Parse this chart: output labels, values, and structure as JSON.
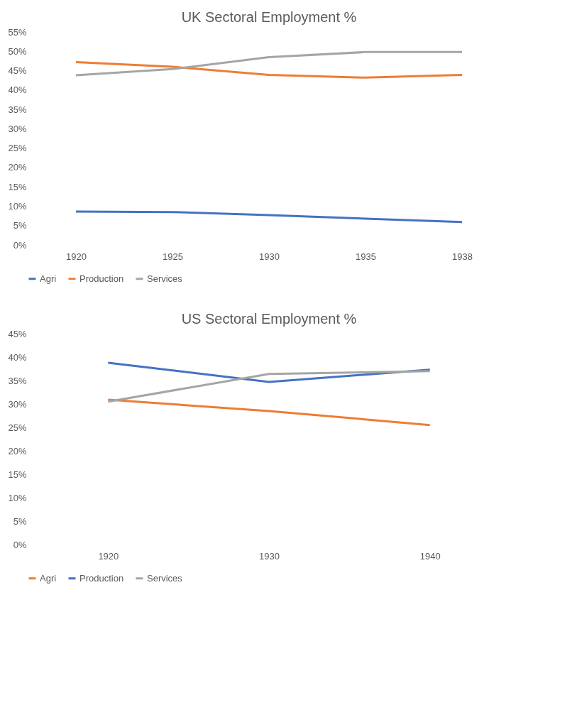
{
  "chart_data": [
    {
      "type": "line",
      "title": "UK  Sectoral Employment %",
      "categories": [
        "1920",
        "1925",
        "1930",
        "1935",
        "1938"
      ],
      "series": [
        {
          "name": "Agri",
          "color": "#4472c4",
          "values": [
            8.6,
            8.5,
            7.7,
            6.8,
            5.9
          ]
        },
        {
          "name": "Production",
          "color": "#ed7d31",
          "values": [
            47.2,
            46.0,
            43.9,
            43.2,
            43.9
          ]
        },
        {
          "name": "Services",
          "color": "#a5a5a5",
          "values": [
            43.8,
            45.4,
            48.5,
            49.8,
            49.8
          ]
        }
      ],
      "ylim": [
        0,
        55
      ],
      "yticks": [
        {
          "value": 0,
          "label": "0%"
        },
        {
          "value": 5,
          "label": "5%"
        },
        {
          "value": 10,
          "label": "10%"
        },
        {
          "value": 15,
          "label": "15%"
        },
        {
          "value": 20,
          "label": "20%"
        },
        {
          "value": 25,
          "label": "25%"
        },
        {
          "value": 30,
          "label": "30%"
        },
        {
          "value": 35,
          "label": "35%"
        },
        {
          "value": 40,
          "label": "40%"
        },
        {
          "value": 45,
          "label": "45%"
        },
        {
          "value": 50,
          "label": "50%"
        },
        {
          "value": 55,
          "label": "55%"
        }
      ],
      "grid": false,
      "legend": "bottom",
      "marker": "none"
    },
    {
      "type": "line",
      "title": "US Sectoral Employment %",
      "categories": [
        "1920",
        "1930",
        "1940"
      ],
      "series": [
        {
          "name": "Agri",
          "color": "#ed7d31",
          "values": [
            30.9,
            28.5,
            25.5
          ]
        },
        {
          "name": "Production",
          "color": "#4472c4",
          "values": [
            38.8,
            34.7,
            37.3
          ]
        },
        {
          "name": "Services",
          "color": "#a5a5a5",
          "values": [
            30.5,
            36.4,
            37.0
          ]
        }
      ],
      "ylim": [
        0,
        45
      ],
      "yticks": [
        {
          "value": 0,
          "label": "0%"
        },
        {
          "value": 5,
          "label": "5%"
        },
        {
          "value": 10,
          "label": "10%"
        },
        {
          "value": 15,
          "label": "15%"
        },
        {
          "value": 20,
          "label": "20%"
        },
        {
          "value": 25,
          "label": "25%"
        },
        {
          "value": 30,
          "label": "30%"
        },
        {
          "value": 35,
          "label": "35%"
        },
        {
          "value": 40,
          "label": "40%"
        },
        {
          "value": 45,
          "label": "45%"
        }
      ],
      "grid": false,
      "legend": "bottom",
      "marker": "none"
    }
  ]
}
